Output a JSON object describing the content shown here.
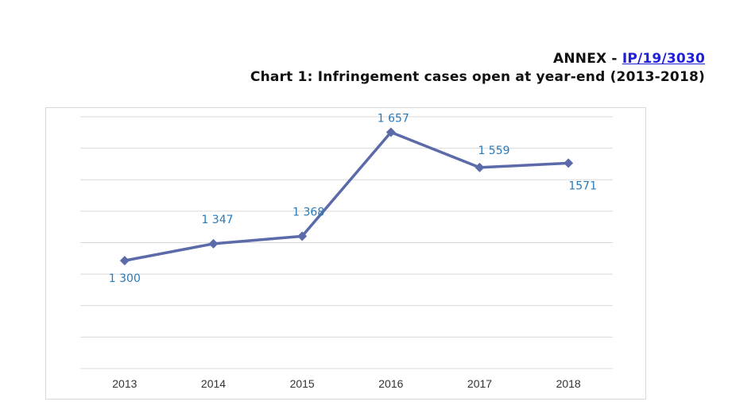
{
  "header": {
    "annex_prefix": "ANNEX - ",
    "annex_link": "IP/19/3030",
    "chart_title": "Chart 1: Infringement cases open at year-end (2013-2018)"
  },
  "colors": {
    "line": "#5b6aa8",
    "data_label": "#2a7ab8",
    "grid": "#d9d9d9",
    "link": "#1f1fd6"
  },
  "chart_data": {
    "type": "line",
    "title": "Chart 1: Infringement cases open at year-end (2013-2018)",
    "xlabel": "",
    "ylabel": "",
    "categories": [
      "2013",
      "2014",
      "2015",
      "2016",
      "2017",
      "2018"
    ],
    "series": [
      {
        "values": [
          1300,
          1347,
          1368,
          1657,
          1559,
          1571
        ],
        "data_labels": [
          "1 300",
          "1 347",
          "1 368",
          "1 657",
          "1 559",
          "1571"
        ],
        "marker": "diamond"
      }
    ],
    "ylim": [
      1000,
      1700
    ],
    "grid": true,
    "legend": "none"
  }
}
